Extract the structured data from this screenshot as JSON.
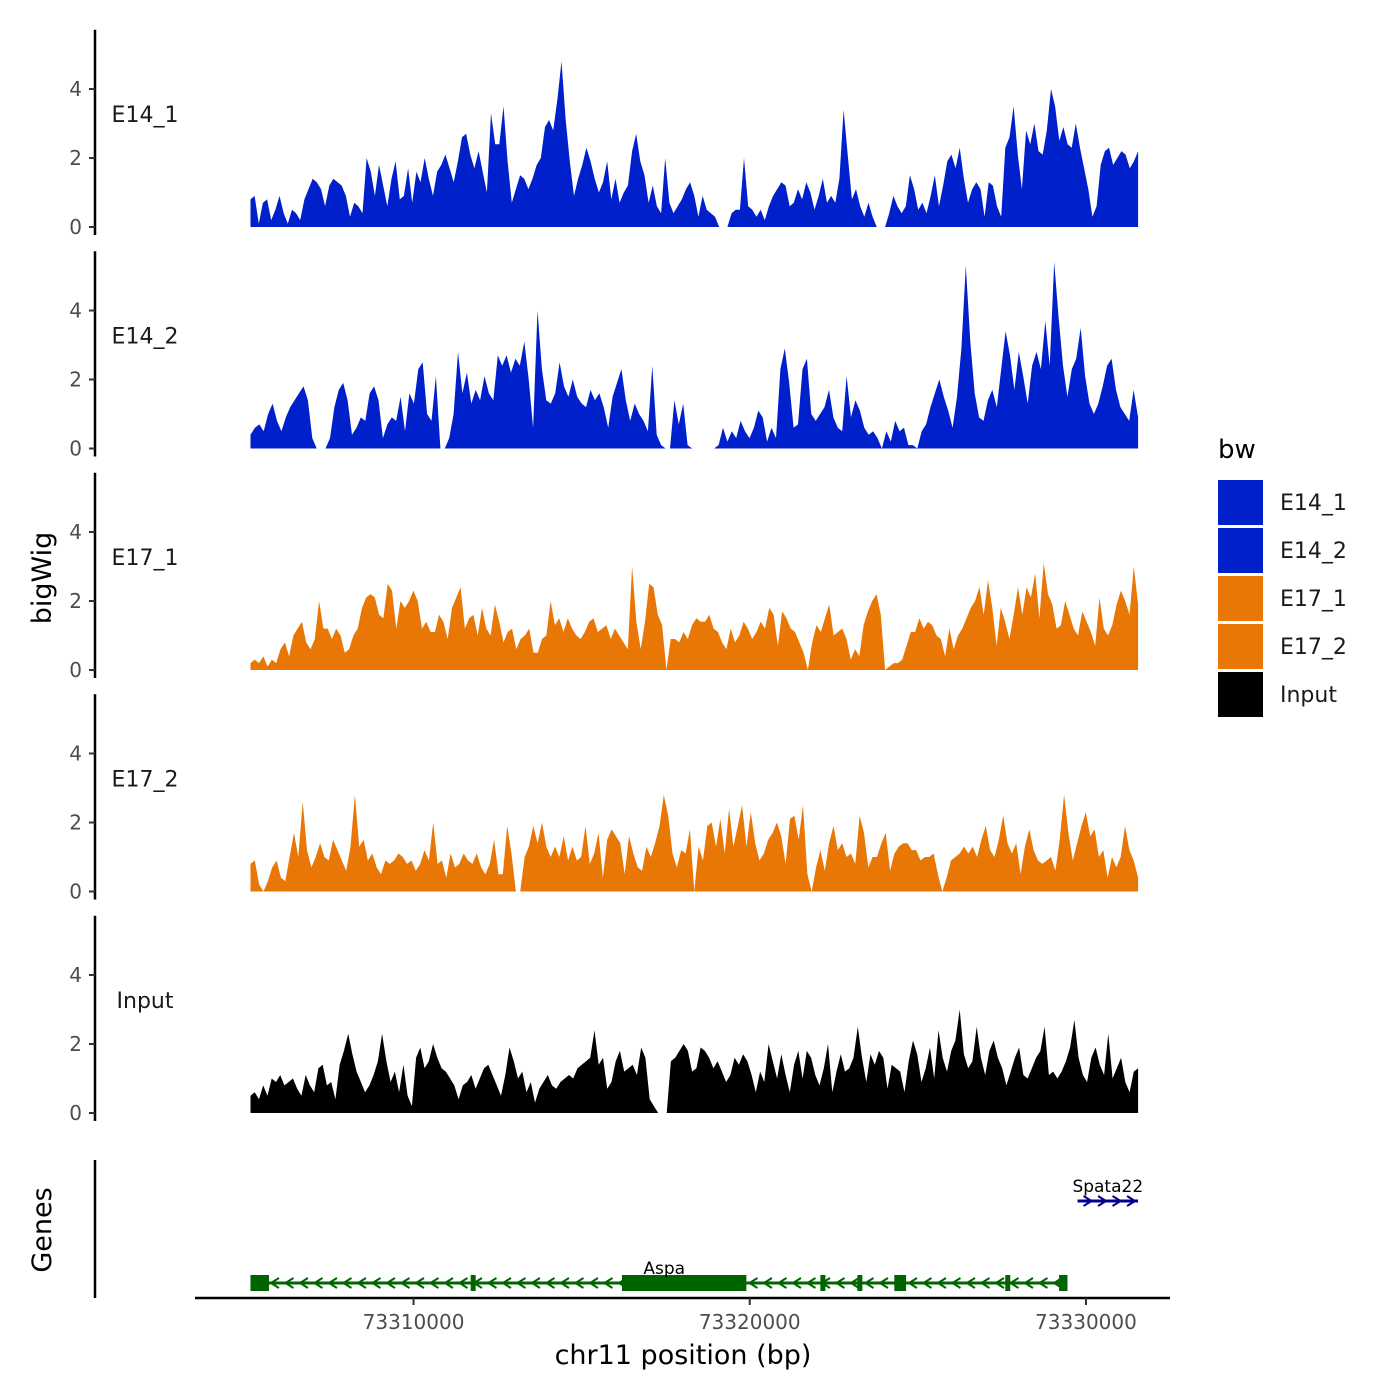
{
  "chart_data": {
    "type": "area",
    "chromosome": "chr11",
    "xlabel": "chr11 position (bp)",
    "ylabel": "bigWig",
    "genes_label": "Genes",
    "xlim": [
      73303500,
      73332500
    ],
    "ylim": [
      0,
      5.6
    ],
    "x_ticks": [
      73310000,
      73320000,
      73330000
    ],
    "y_ticks": [
      0,
      2,
      4
    ],
    "track_start": 73305150,
    "track_end": 73331550,
    "legend": {
      "title": "bw",
      "entries": [
        {
          "label": "E14_1",
          "color": "#0020CC"
        },
        {
          "label": "E14_2",
          "color": "#0020CC"
        },
        {
          "label": "E17_1",
          "color": "#E87705"
        },
        {
          "label": "E17_2",
          "color": "#E87705"
        },
        {
          "label": "Input",
          "color": "#000000"
        }
      ]
    },
    "series": [
      {
        "name": "E14_1",
        "color": "#0020CC",
        "values": [
          0.8,
          0.9,
          0.1,
          0.7,
          0.8,
          0.2,
          0.5,
          0.9,
          0.4,
          0.1,
          0.5,
          0.4,
          0.2,
          0.8,
          1.1,
          1.4,
          1.3,
          1.1,
          0.6,
          1.2,
          1.4,
          1.3,
          1.2,
          0.9,
          0.3,
          0.7,
          0.6,
          0.4,
          2.0,
          1.6,
          0.9,
          1.8,
          1.2,
          0.6,
          1.4,
          1.9,
          0.8,
          0.9,
          1.7,
          0.7,
          1.6,
          1.3,
          2.0,
          1.4,
          0.9,
          1.6,
          1.8,
          2.1,
          1.7,
          1.3,
          1.9,
          2.6,
          2.7,
          2.1,
          1.7,
          2.2,
          1.6,
          1.0,
          3.3,
          2.4,
          2.4,
          3.5,
          1.9,
          0.7,
          1.1,
          1.5,
          1.4,
          1.1,
          1.4,
          1.8,
          2.0,
          2.9,
          3.1,
          2.8,
          3.7,
          4.8,
          3.1,
          1.9,
          0.9,
          1.4,
          1.8,
          2.3,
          1.9,
          1.4,
          1.0,
          1.3,
          1.9,
          0.8,
          1.4,
          0.7,
          1.0,
          1.2,
          2.2,
          2.7,
          1.9,
          1.5,
          0.7,
          1.2,
          0.6,
          0.4,
          2.0,
          0.7,
          0.4,
          0.6,
          0.8,
          1.1,
          1.3,
          0.9,
          0.3,
          0.9,
          0.5,
          0.4,
          0.3,
          0.0,
          0.0,
          0.0,
          0.4,
          0.5,
          0.5,
          2.0,
          0.6,
          0.5,
          0.3,
          0.5,
          0.2,
          0.6,
          0.9,
          1.1,
          1.3,
          1.2,
          0.6,
          0.7,
          1.1,
          0.8,
          1.3,
          1.0,
          0.5,
          0.9,
          1.4,
          0.7,
          0.9,
          0.7,
          1.4,
          3.4,
          2.1,
          0.8,
          1.1,
          0.6,
          0.3,
          0.7,
          0.3,
          0.0,
          0.0,
          0.0,
          0.4,
          0.9,
          0.6,
          0.4,
          0.6,
          1.5,
          1.1,
          0.5,
          0.7,
          0.4,
          0.9,
          1.5,
          0.6,
          1.2,
          1.9,
          2.1,
          1.7,
          2.3,
          1.4,
          0.7,
          1.1,
          1.3,
          1.1,
          0.3,
          1.3,
          1.2,
          0.6,
          0.3,
          2.3,
          2.6,
          3.5,
          2.1,
          1.1,
          2.8,
          2.4,
          3.0,
          2.2,
          2.1,
          2.8,
          4.0,
          3.5,
          2.5,
          2.9,
          2.4,
          2.3,
          3.0,
          2.3,
          1.7,
          1.1,
          0.3,
          0.6,
          1.8,
          2.2,
          2.3,
          1.8,
          2.0,
          2.2,
          2.1,
          1.7,
          1.9,
          2.2
        ]
      },
      {
        "name": "E14_2",
        "color": "#0020CC",
        "values": [
          0.4,
          0.6,
          0.7,
          0.5,
          1.0,
          1.3,
          0.8,
          0.5,
          0.9,
          1.2,
          1.4,
          1.6,
          1.8,
          1.4,
          0.3,
          0.0,
          0.0,
          0.0,
          0.3,
          1.2,
          1.7,
          1.9,
          1.4,
          0.4,
          0.6,
          0.9,
          0.8,
          1.6,
          1.8,
          1.4,
          0.3,
          0.7,
          0.9,
          0.8,
          1.5,
          0.5,
          1.6,
          1.3,
          2.3,
          2.5,
          1.0,
          0.8,
          2.1,
          0.0,
          0.0,
          0.3,
          1.0,
          2.8,
          1.6,
          2.2,
          1.3,
          1.7,
          1.4,
          2.1,
          1.6,
          1.4,
          2.7,
          2.4,
          2.7,
          2.2,
          2.6,
          2.4,
          3.1,
          2.0,
          0.6,
          4.0,
          2.3,
          1.4,
          1.3,
          1.6,
          2.5,
          1.8,
          1.5,
          2.0,
          1.5,
          1.3,
          1.2,
          1.7,
          1.4,
          1.6,
          1.2,
          0.6,
          1.5,
          1.9,
          2.3,
          1.4,
          0.8,
          1.3,
          1.0,
          0.8,
          0.5,
          2.4,
          0.4,
          0.1,
          0.0,
          0.0,
          1.4,
          0.7,
          1.3,
          0.1,
          0.0,
          0.0,
          0.0,
          0.0,
          0.0,
          0.0,
          0.1,
          0.6,
          0.2,
          0.5,
          0.3,
          0.8,
          0.5,
          0.3,
          0.6,
          1.1,
          0.9,
          0.2,
          0.6,
          0.3,
          2.3,
          2.9,
          1.9,
          0.6,
          0.7,
          2.3,
          2.6,
          1.0,
          0.8,
          1.0,
          1.2,
          1.7,
          0.9,
          0.6,
          0.5,
          2.1,
          0.9,
          1.4,
          1.1,
          0.6,
          0.4,
          0.5,
          0.3,
          0.0,
          0.5,
          0.2,
          0.8,
          0.5,
          0.6,
          0.1,
          0.1,
          0.0,
          0.5,
          0.7,
          1.2,
          1.6,
          2.0,
          1.5,
          1.1,
          0.6,
          1.5,
          2.9,
          5.3,
          3.1,
          1.6,
          0.9,
          0.8,
          1.4,
          1.7,
          1.2,
          2.3,
          3.4,
          2.7,
          1.7,
          2.8,
          2.1,
          1.3,
          2.4,
          2.8,
          2.3,
          3.7,
          2.4,
          5.4,
          3.8,
          2.4,
          1.5,
          2.3,
          2.6,
          3.5,
          2.1,
          1.3,
          1.0,
          1.3,
          1.8,
          2.4,
          2.6,
          1.7,
          1.2,
          1.0,
          0.8,
          1.7,
          0.9
        ]
      },
      {
        "name": "E17_1",
        "color": "#E87705",
        "values": [
          0.2,
          0.3,
          0.2,
          0.4,
          0.1,
          0.3,
          0.2,
          0.6,
          0.8,
          0.4,
          1.0,
          1.2,
          1.4,
          0.8,
          0.6,
          0.9,
          2.0,
          1.2,
          1.2,
          0.9,
          1.2,
          1.0,
          0.5,
          0.6,
          1.0,
          1.2,
          1.8,
          2.1,
          2.2,
          2.1,
          1.6,
          1.5,
          2.5,
          2.3,
          1.2,
          2.0,
          1.8,
          2.0,
          2.3,
          2.0,
          1.2,
          1.4,
          1.1,
          1.1,
          1.6,
          1.4,
          0.9,
          1.8,
          2.1,
          2.4,
          1.2,
          1.5,
          1.6,
          1.0,
          1.8,
          1.2,
          1.0,
          1.9,
          1.4,
          0.8,
          1.1,
          1.2,
          0.6,
          0.9,
          1.0,
          1.2,
          0.5,
          0.5,
          0.9,
          1.0,
          2.0,
          1.3,
          1.5,
          1.1,
          1.5,
          1.2,
          1.0,
          0.9,
          1.1,
          1.4,
          1.5,
          1.1,
          1.2,
          1.3,
          0.9,
          1.2,
          1.0,
          0.8,
          0.6,
          3.0,
          1.4,
          0.6,
          1.4,
          2.5,
          2.4,
          1.6,
          1.3,
          0.0,
          0.9,
          0.9,
          0.8,
          1.1,
          0.9,
          1.3,
          1.5,
          1.4,
          1.4,
          1.6,
          1.2,
          1.1,
          0.8,
          0.6,
          1.2,
          0.8,
          1.0,
          1.4,
          1.2,
          0.9,
          1.1,
          1.4,
          1.2,
          1.8,
          1.6,
          0.7,
          1.7,
          1.5,
          1.2,
          1.1,
          0.8,
          0.5,
          0.0,
          0.8,
          1.3,
          1.1,
          1.5,
          1.9,
          1.0,
          1.1,
          1.2,
          0.9,
          0.3,
          0.6,
          0.4,
          1.3,
          1.7,
          2.0,
          2.2,
          1.6,
          0.0,
          0.1,
          0.2,
          0.2,
          0.3,
          0.7,
          1.1,
          1.1,
          1.5,
          1.2,
          1.4,
          1.3,
          1.0,
          0.9,
          0.4,
          1.2,
          0.6,
          1.0,
          1.2,
          1.5,
          1.8,
          2.0,
          2.4,
          1.6,
          2.6,
          1.8,
          0.7,
          1.8,
          1.4,
          0.9,
          1.6,
          2.4,
          1.6,
          2.4,
          2.1,
          2.8,
          1.5,
          3.1,
          2.2,
          1.9,
          1.2,
          1.3,
          2.0,
          1.6,
          1.2,
          1.0,
          1.7,
          1.4,
          1.1,
          0.7,
          2.1,
          1.2,
          1.0,
          1.3,
          1.9,
          2.3,
          2.0,
          1.6,
          3.0,
          1.9
        ]
      },
      {
        "name": "E17_2",
        "color": "#E87705",
        "values": [
          0.8,
          0.9,
          0.2,
          0.0,
          0.3,
          0.7,
          0.9,
          0.4,
          0.3,
          1.0,
          1.7,
          1.0,
          2.6,
          1.2,
          0.7,
          1.0,
          1.4,
          1.0,
          0.9,
          1.5,
          1.2,
          0.9,
          0.6,
          1.3,
          2.8,
          1.3,
          1.5,
          0.9,
          1.1,
          0.7,
          0.5,
          0.9,
          0.8,
          0.9,
          1.1,
          1.0,
          0.8,
          0.9,
          0.6,
          0.8,
          1.2,
          0.9,
          2.0,
          0.8,
          0.9,
          0.4,
          1.1,
          0.7,
          0.8,
          1.1,
          0.9,
          0.8,
          1.1,
          0.7,
          0.5,
          0.8,
          1.5,
          0.5,
          0.5,
          1.9,
          1.1,
          0.0,
          0.0,
          1.0,
          1.3,
          1.9,
          1.4,
          2.0,
          1.3,
          1.0,
          1.3,
          1.0,
          1.6,
          0.9,
          1.3,
          0.9,
          1.0,
          1.9,
          0.8,
          1.1,
          1.7,
          0.4,
          1.5,
          1.8,
          1.6,
          1.4,
          0.5,
          1.6,
          1.1,
          0.7,
          0.6,
          1.3,
          1.0,
          1.4,
          1.9,
          2.8,
          2.2,
          1.1,
          0.7,
          1.2,
          1.1,
          1.8,
          0.0,
          1.3,
          0.9,
          1.9,
          2.0,
          1.3,
          2.1,
          1.1,
          2.4,
          1.3,
          1.9,
          2.5,
          1.3,
          2.3,
          1.4,
          0.9,
          1.1,
          1.5,
          1.7,
          2.0,
          1.6,
          0.8,
          2.1,
          2.2,
          1.5,
          2.5,
          0.5,
          0.0,
          0.7,
          1.2,
          0.6,
          1.4,
          1.9,
          1.2,
          1.4,
          1.0,
          1.1,
          0.8,
          2.2,
          1.7,
          0.7,
          1.0,
          1.0,
          1.4,
          1.7,
          0.6,
          1.1,
          1.3,
          1.4,
          1.4,
          1.2,
          1.2,
          0.9,
          1.0,
          1.0,
          1.1,
          0.5,
          0.0,
          0.4,
          0.9,
          1.0,
          1.1,
          1.3,
          1.1,
          1.3,
          1.0,
          1.5,
          1.9,
          1.2,
          1.0,
          1.5,
          2.2,
          1.4,
          1.1,
          1.4,
          0.5,
          1.3,
          1.8,
          1.2,
          0.9,
          0.8,
          0.9,
          1.0,
          0.6,
          1.5,
          2.8,
          1.7,
          0.9,
          1.4,
          1.9,
          2.3,
          1.6,
          1.8,
          1.0,
          1.2,
          0.4,
          1.0,
          0.7,
          1.0,
          1.9,
          1.2,
          0.9,
          0.4
        ]
      },
      {
        "name": "Input",
        "color": "#000000",
        "values": [
          0.5,
          0.6,
          0.4,
          0.8,
          0.5,
          1.0,
          0.9,
          1.1,
          0.8,
          0.9,
          1.0,
          0.7,
          0.5,
          1.1,
          0.8,
          0.6,
          1.3,
          1.4,
          0.8,
          0.9,
          0.4,
          1.4,
          1.8,
          2.3,
          1.7,
          1.2,
          0.9,
          0.6,
          0.8,
          1.1,
          1.5,
          2.3,
          1.5,
          0.9,
          1.2,
          0.6,
          1.4,
          0.5,
          0.2,
          1.6,
          1.9,
          1.3,
          1.5,
          2.0,
          1.6,
          1.3,
          1.2,
          1.0,
          0.8,
          0.4,
          0.8,
          0.9,
          1.1,
          0.7,
          1.0,
          1.3,
          1.4,
          1.1,
          0.8,
          0.5,
          1.1,
          1.9,
          1.5,
          1.0,
          1.2,
          0.6,
          0.9,
          0.3,
          0.7,
          0.9,
          1.1,
          0.8,
          0.7,
          0.9,
          1.0,
          1.1,
          1.0,
          1.3,
          1.4,
          1.5,
          1.6,
          2.4,
          1.4,
          1.6,
          0.7,
          0.9,
          1.5,
          1.8,
          1.2,
          1.3,
          1.4,
          1.1,
          1.9,
          1.6,
          0.4,
          0.2,
          0.0,
          0.0,
          0.0,
          1.5,
          1.6,
          1.8,
          2.0,
          1.8,
          1.2,
          1.3,
          1.9,
          1.8,
          1.6,
          1.3,
          1.5,
          1.2,
          0.9,
          1.1,
          1.6,
          1.4,
          1.7,
          1.5,
          1.1,
          0.6,
          1.2,
          0.9,
          2.0,
          1.5,
          1.0,
          1.7,
          1.1,
          0.6,
          1.4,
          1.8,
          1.0,
          1.8,
          1.6,
          1.1,
          0.8,
          1.3,
          2.0,
          0.6,
          1.2,
          1.7,
          1.2,
          1.3,
          1.6,
          2.5,
          1.6,
          0.9,
          1.7,
          1.4,
          1.8,
          1.6,
          0.7,
          1.4,
          1.3,
          1.2,
          0.6,
          1.5,
          2.1,
          1.7,
          0.9,
          1.3,
          1.9,
          1.0,
          2.4,
          1.6,
          1.2,
          1.8,
          2.1,
          3.0,
          1.7,
          1.3,
          1.5,
          2.5,
          1.6,
          1.1,
          1.8,
          2.1,
          1.6,
          1.3,
          0.8,
          1.2,
          1.6,
          1.9,
          1.1,
          1.0,
          1.3,
          1.6,
          1.8,
          2.5,
          1.1,
          1.2,
          1.0,
          1.2,
          1.5,
          1.9,
          2.7,
          1.6,
          1.1,
          0.9,
          1.6,
          1.9,
          1.4,
          1.1,
          2.3,
          1.0,
          1.3,
          1.6,
          0.9,
          0.6,
          1.2,
          1.3
        ]
      }
    ],
    "genes": [
      {
        "name": "Aspa",
        "strand": "-",
        "color": "#006400",
        "start": 73305150,
        "end": 73329450,
        "exons": [
          [
            73305150,
            73305700
          ],
          [
            73311700,
            73311800
          ],
          [
            73316200,
            73319900
          ],
          [
            73322100,
            73322250
          ],
          [
            73323200,
            73323300
          ],
          [
            73324300,
            73324650
          ],
          [
            73327600,
            73327700
          ],
          [
            73329200,
            73329450
          ]
        ]
      },
      {
        "name": "Spata22",
        "strand": "+",
        "color": "#00008B",
        "start": 73329750,
        "end": 73331550,
        "exons": []
      }
    ]
  }
}
